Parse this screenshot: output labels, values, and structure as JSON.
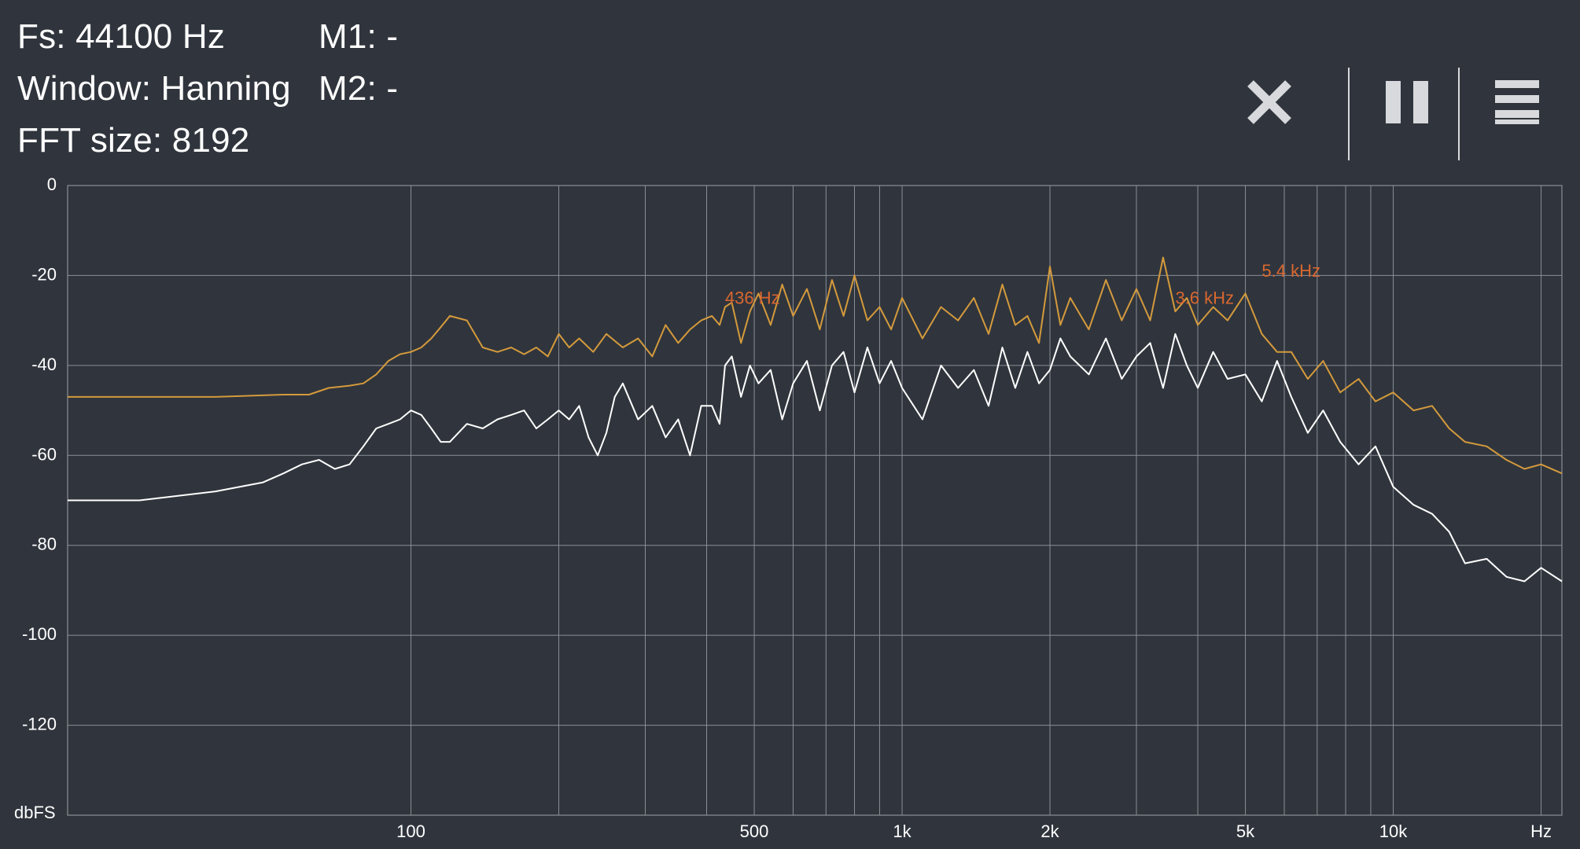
{
  "info": {
    "sample_rate": "Fs: 44100 Hz",
    "window": "Window: Hanning",
    "fft_size": "FFT size: 8192",
    "marker1": "M1: -",
    "marker2": "M2: -"
  },
  "toolbar": {
    "close_icon": "close-icon",
    "pause_icon": "pause-icon",
    "menu_icon": "menu-icon"
  },
  "colors": {
    "background": "#30353d",
    "grid": "#8a8f96",
    "live_trace": "#ffffff",
    "peak_hold_trace": "#d49a3c",
    "marker_label": "#d9672f"
  },
  "chart_data": {
    "type": "line",
    "x_scale": "log",
    "xlim": [
      20,
      22050
    ],
    "ylim": [
      -140,
      0
    ],
    "ylabel": "dbFS",
    "xlabel": "Hz",
    "y_ticks": [
      "0",
      "-20",
      "-40",
      "-60",
      "-80",
      "-100",
      "-120"
    ],
    "x_ticks": [
      {
        "value": 100,
        "label": "100"
      },
      {
        "value": 500,
        "label": "500"
      },
      {
        "value": 1000,
        "label": "1k"
      },
      {
        "value": 2000,
        "label": "2k"
      },
      {
        "value": 5000,
        "label": "5k"
      },
      {
        "value": 10000,
        "label": "10k"
      }
    ],
    "x_unit_label": "Hz",
    "grid": true,
    "annotations": [
      {
        "text": "436 Hz",
        "x": 436,
        "y": -27
      },
      {
        "text": "3.6 kHz",
        "x": 3600,
        "y": -27
      },
      {
        "text": "5.4  kHz",
        "x": 5400,
        "y": -21
      }
    ],
    "series": [
      {
        "values_x": [
          20,
          28,
          40,
          55,
          62,
          68,
          75,
          80,
          85,
          90,
          95,
          100,
          105,
          110,
          115,
          120,
          130,
          140,
          150,
          160,
          170,
          180,
          190,
          200,
          210,
          220,
          235,
          250,
          270,
          290,
          310,
          330,
          350,
          370,
          390,
          410,
          425,
          436,
          450,
          470,
          490,
          510,
          540,
          570,
          600,
          640,
          680,
          720,
          760,
          800,
          850,
          900,
          950,
          1000,
          1100,
          1200,
          1300,
          1400,
          1500,
          1600,
          1700,
          1800,
          1900,
          2000,
          2100,
          2200,
          2400,
          2600,
          2800,
          3000,
          3200,
          3400,
          3600,
          3800,
          4000,
          4300,
          4600,
          5000,
          5400,
          5800,
          6200,
          6700,
          7200,
          7800,
          8500,
          9200,
          10000,
          11000,
          12000,
          13000,
          14000,
          15500,
          17000,
          18500,
          20000,
          22050
        ],
        "values_y": [
          -47,
          -47,
          -47,
          -46.5,
          -46.5,
          -45,
          -44.5,
          -44,
          -42,
          -39,
          -37.5,
          -37,
          -36,
          -34,
          -31.5,
          -29,
          -30,
          -36,
          -37,
          -36,
          -37.5,
          -36,
          -38,
          -33,
          -36,
          -34,
          -37,
          -33,
          -36,
          -34,
          -38,
          -31,
          -35,
          -32,
          -30,
          -29,
          -31,
          -27,
          -26,
          -35,
          -28,
          -24,
          -31,
          -22,
          -29,
          -23,
          -32,
          -21,
          -29,
          -20,
          -30,
          -27,
          -32,
          -25,
          -34,
          -27,
          -30,
          -25,
          -33,
          -22,
          -31,
          -29,
          -35,
          -18,
          -31,
          -25,
          -32,
          -21,
          -30,
          -23,
          -30,
          -16,
          -28,
          -25,
          -31,
          -27,
          -30,
          -24,
          -33,
          -37,
          -37,
          -43,
          -39,
          -46,
          -43,
          -48,
          -46,
          -50,
          -49,
          -54,
          -57,
          -58,
          -61,
          -63,
          -62,
          -64
        ]
      },
      {
        "values_x": [
          20,
          28,
          40,
          50,
          55,
          60,
          65,
          70,
          75,
          80,
          85,
          90,
          95,
          100,
          105,
          110,
          115,
          120,
          130,
          140,
          150,
          160,
          170,
          180,
          190,
          200,
          210,
          220,
          230,
          240,
          250,
          260,
          270,
          290,
          310,
          330,
          350,
          370,
          390,
          410,
          425,
          436,
          450,
          470,
          490,
          510,
          540,
          570,
          600,
          640,
          680,
          720,
          760,
          800,
          850,
          900,
          950,
          1000,
          1100,
          1200,
          1300,
          1400,
          1500,
          1600,
          1700,
          1800,
          1900,
          2000,
          2100,
          2200,
          2400,
          2600,
          2800,
          3000,
          3200,
          3400,
          3600,
          3800,
          4000,
          4300,
          4600,
          5000,
          5400,
          5800,
          6200,
          6700,
          7200,
          7800,
          8500,
          9200,
          10000,
          11000,
          12000,
          13000,
          14000,
          15500,
          17000,
          18500,
          20000,
          22050
        ],
        "values_y": [
          -70,
          -70,
          -68,
          -66,
          -64,
          -62,
          -61,
          -63,
          -62,
          -58,
          -54,
          -53,
          -52,
          -50,
          -51,
          -54,
          -57,
          -57,
          -53,
          -54,
          -52,
          -51,
          -50,
          -54,
          -52,
          -50,
          -52,
          -49,
          -56,
          -60,
          -55,
          -47,
          -44,
          -52,
          -49,
          -56,
          -52,
          -60,
          -49,
          -49,
          -53,
          -40,
          -38,
          -47,
          -40,
          -44,
          -41,
          -52,
          -44,
          -39,
          -50,
          -40,
          -37,
          -46,
          -36,
          -44,
          -39,
          -45,
          -52,
          -40,
          -45,
          -41,
          -49,
          -36,
          -45,
          -37,
          -44,
          -41,
          -34,
          -38,
          -42,
          -34,
          -43,
          -38,
          -35,
          -45,
          -33,
          -40,
          -45,
          -37,
          -43,
          -42,
          -48,
          -39,
          -47,
          -55,
          -50,
          -57,
          -62,
          -58,
          -67,
          -71,
          -73,
          -77,
          -84,
          -83,
          -87,
          -88,
          -85,
          -88
        ]
      }
    ]
  }
}
